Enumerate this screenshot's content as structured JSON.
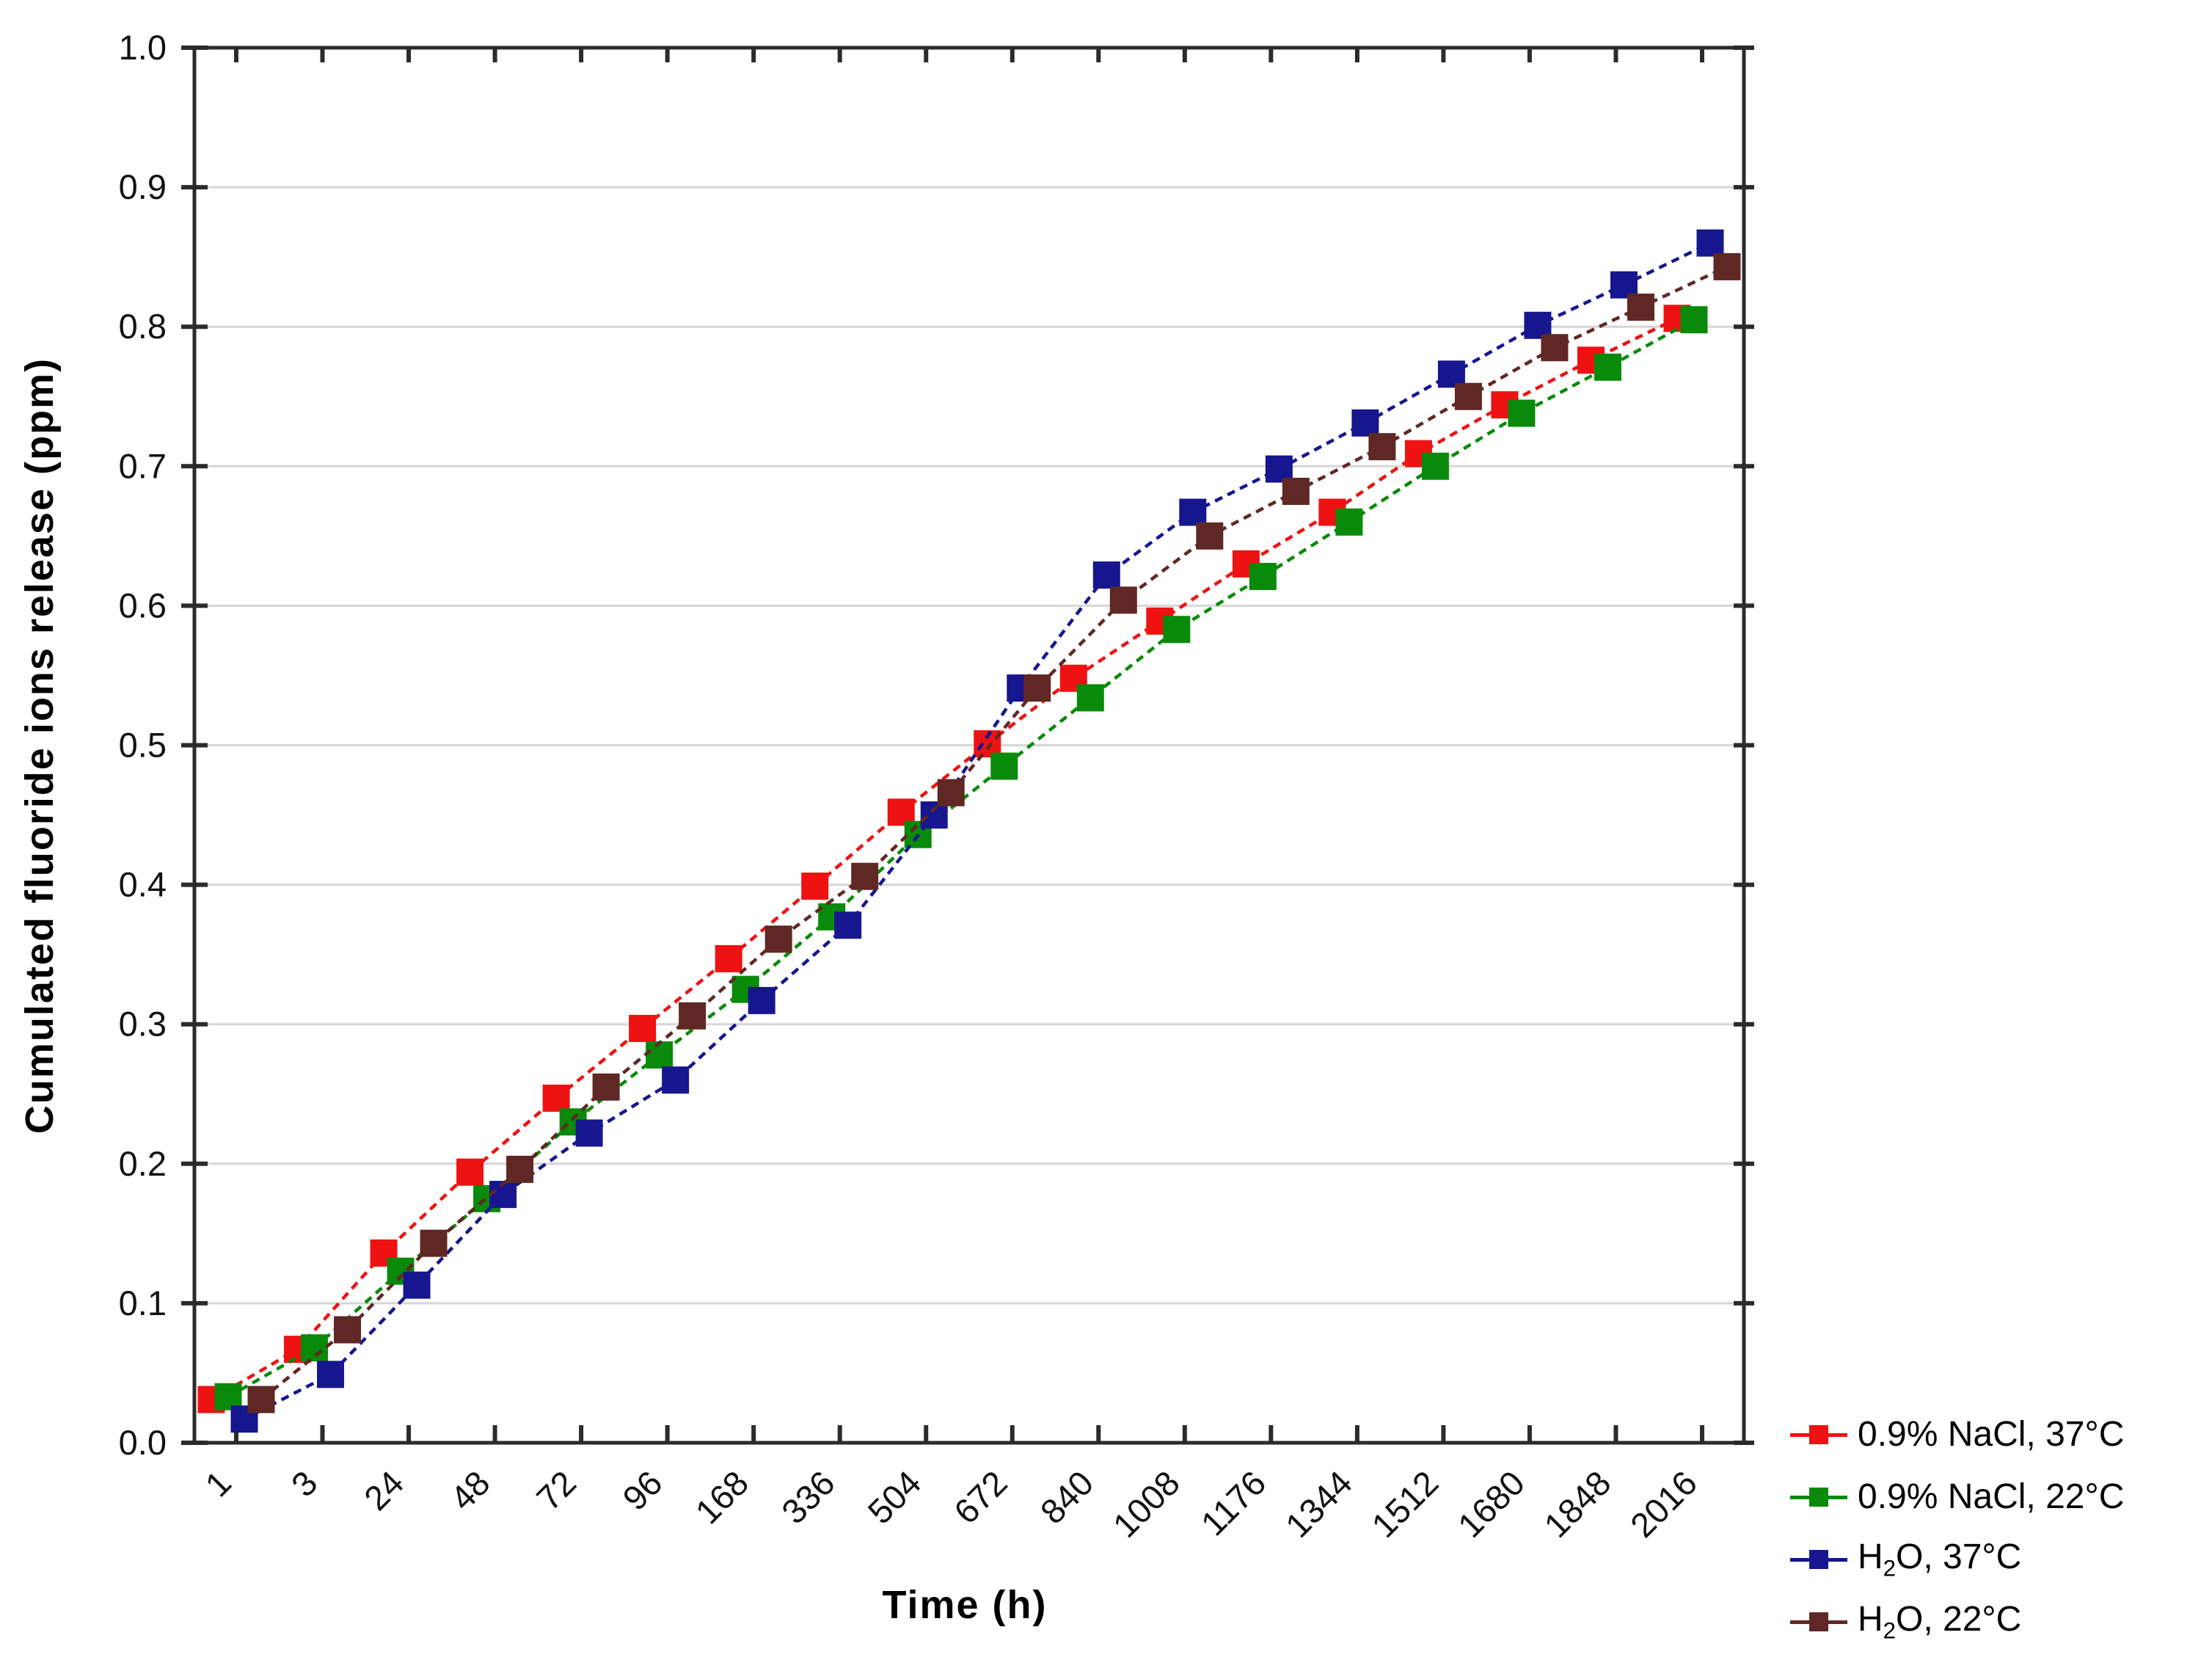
{
  "chart_data": {
    "type": "line",
    "title": "",
    "xlabel": "Time (h)",
    "ylabel": "Cumulated fluoride ions release (ppm)",
    "x_tick_labels": [
      "1",
      "3",
      "24",
      "48",
      "72",
      "96",
      "168",
      "336",
      "504",
      "672",
      "840",
      "1008",
      "1176",
      "1344",
      "1512",
      "1680",
      "1848",
      "2016"
    ],
    "y_tick_labels": [
      "0.0",
      "0.1",
      "0.2",
      "0.3",
      "0.4",
      "0.5",
      "0.6",
      "0.7",
      "0.8",
      "0.9",
      "1.0"
    ],
    "ylim": [
      0.0,
      1.0
    ],
    "y_major_step": 0.1,
    "grid": "horizontal",
    "gridline_color": "#d6d6d6",
    "axis_color": "#2b2b2b",
    "line_style": "dashed",
    "marker": "square",
    "legend_position": "bottom-right",
    "categories": [
      1,
      3,
      24,
      48,
      72,
      96,
      168,
      336,
      504,
      672,
      840,
      1008,
      1176,
      1344,
      1512,
      1680,
      1848,
      2016
    ],
    "series": [
      {
        "name": "0.9% NaCl, 37°C",
        "color": "#ee1212",
        "values": [
          0.031,
          0.067,
          0.136,
          0.194,
          0.247,
          0.297,
          0.347,
          0.399,
          0.452,
          0.501,
          0.548,
          0.589,
          0.63,
          0.667,
          0.709,
          0.744,
          0.776,
          0.806
        ]
      },
      {
        "name": "0.9% NaCl, 22°C",
        "color": "#0a8a0a",
        "values": [
          0.033,
          0.068,
          0.123,
          0.175,
          0.23,
          0.278,
          0.325,
          0.377,
          0.436,
          0.485,
          0.534,
          0.583,
          0.621,
          0.66,
          0.7,
          0.738,
          0.771,
          0.805
        ]
      },
      {
        "name": "H2O, 37°C",
        "color": "#16168f",
        "values": [
          0.017,
          0.049,
          0.113,
          0.178,
          0.222,
          0.26,
          0.317,
          0.371,
          0.45,
          0.541,
          0.622,
          0.667,
          0.698,
          0.731,
          0.766,
          0.801,
          0.83,
          0.86
        ]
      },
      {
        "name": "H2O, 22°C",
        "color": "#5f2824",
        "values": [
          0.031,
          0.081,
          0.143,
          0.196,
          0.255,
          0.306,
          0.361,
          0.406,
          0.466,
          0.541,
          0.604,
          0.65,
          0.682,
          0.714,
          0.75,
          0.785,
          0.814,
          0.843
        ]
      }
    ],
    "legend": [
      {
        "color": "#ee1212",
        "segments": [
          {
            "t": "0.9% NaCl, 37°C"
          }
        ]
      },
      {
        "color": "#0a8a0a",
        "segments": [
          {
            "t": "0.9% NaCl, 22°C"
          }
        ]
      },
      {
        "color": "#16168f",
        "segments": [
          {
            "t": "H"
          },
          {
            "t": "2",
            "sub": true
          },
          {
            "t": "O, 37°C"
          }
        ]
      },
      {
        "color": "#5f2824",
        "segments": [
          {
            "t": "H"
          },
          {
            "t": "2",
            "sub": true
          },
          {
            "t": "O, 22°C"
          }
        ]
      }
    ]
  }
}
